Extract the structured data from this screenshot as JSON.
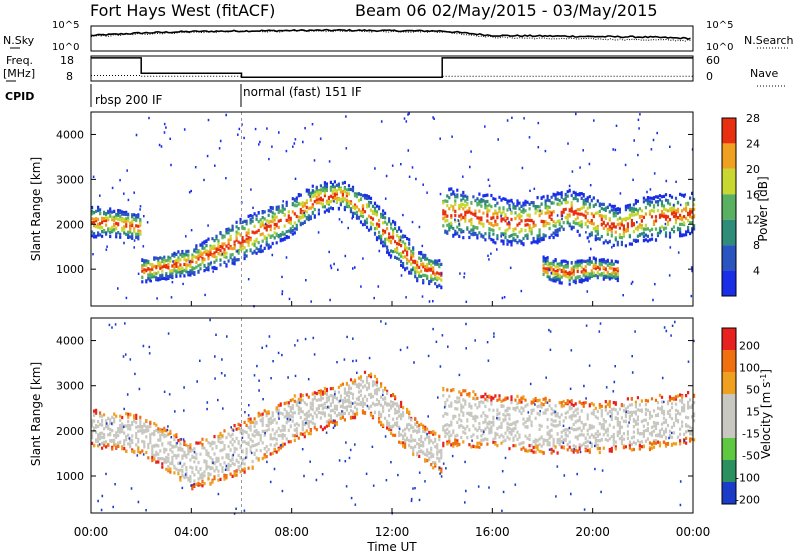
{
  "header": {
    "title": "Fort Hays West (fitACF)",
    "beam_info": "Beam 06 02/May/2015 - 03/May/2015"
  },
  "chart_data": [
    {
      "type": "line",
      "panel": "sky-noise",
      "left_label": "N.Sky",
      "right_label": "N.Search",
      "left_ticks": [
        "10^5",
        "10^0"
      ],
      "right_ticks": [
        "10^5",
        "10^0"
      ],
      "series": [
        {
          "name": "N.Sky",
          "x": [
            0,
            2,
            4,
            6,
            8,
            10,
            12,
            14,
            16,
            18,
            20,
            22,
            24
          ],
          "y": [
            0.62,
            0.72,
            0.78,
            0.8,
            0.82,
            0.83,
            0.81,
            0.8,
            0.62,
            0.6,
            0.58,
            0.56,
            0.5
          ]
        },
        {
          "name": "N.Search",
          "x": [
            0,
            2,
            4,
            6,
            8,
            10,
            12,
            14,
            16,
            18,
            20,
            22,
            24
          ],
          "y": [
            0.58,
            0.68,
            0.75,
            0.78,
            0.79,
            0.8,
            0.78,
            0.77,
            0.55,
            0.5,
            0.48,
            0.45,
            0.42
          ]
        }
      ]
    },
    {
      "type": "line",
      "panel": "frequency-nave",
      "left_label": "Freq.",
      "left_unit": "[MHz]",
      "right_label": "Nave",
      "left_ticks": [
        "18",
        "8"
      ],
      "right_ticks": [
        "60",
        "0"
      ],
      "series": [
        {
          "name": "Freq.",
          "x": [
            0,
            2,
            2,
            6,
            6,
            14,
            14,
            24
          ],
          "y": [
            18,
            18,
            10,
            10,
            8,
            8,
            18,
            18
          ]
        },
        {
          "name": "Nave",
          "x": [
            0,
            2,
            2,
            6,
            6,
            14,
            14,
            24
          ],
          "y": [
            14,
            14,
            12,
            12,
            10,
            10,
            12,
            12
          ]
        }
      ]
    },
    {
      "type": "table",
      "panel": "cpid",
      "label": "CPID",
      "segments": [
        {
          "start": 0,
          "end": 6,
          "text": "rbsp 200 IF"
        },
        {
          "start": 6,
          "end": 24,
          "text": "normal (fast) 151 IF"
        }
      ]
    },
    {
      "type": "heatmap",
      "panel": "power",
      "ylabel": "Slant Range [km]",
      "xlim": [
        0,
        24
      ],
      "ylim": [
        180,
        4500
      ],
      "yticks": [
        1000,
        2000,
        3000,
        4000
      ],
      "colorbar": {
        "label": "Power [dB]",
        "ticks": [
          "4",
          "8",
          "12",
          "16",
          "20",
          "24",
          "28"
        ],
        "colors": [
          "#1a2ee8",
          "#2a55c0",
          "#2e8c78",
          "#58b060",
          "#c8d830",
          "#f0a020",
          "#e83010"
        ]
      },
      "bands": [
        {
          "x": [
            0,
            1,
            2,
            2,
            4,
            6,
            8,
            9,
            10,
            11,
            12,
            13,
            14
          ],
          "center": [
            2100,
            2050,
            1950,
            1000,
            1200,
            1700,
            2200,
            2600,
            2700,
            2300,
            1700,
            1100,
            900
          ],
          "width": [
            350,
            300,
            300,
            260,
            300,
            500,
            420,
            350,
            300,
            380,
            450,
            350,
            300
          ]
        },
        {
          "x": [
            14,
            15,
            16,
            17,
            18,
            19,
            20,
            21,
            22,
            23,
            24
          ],
          "center": [
            2300,
            2250,
            2150,
            2050,
            2150,
            2350,
            2150,
            1950,
            2150,
            2200,
            2300
          ],
          "width": [
            550,
            520,
            520,
            500,
            520,
            450,
            500,
            450,
            500,
            500,
            450
          ]
        },
        {
          "x": [
            18,
            19,
            20,
            21
          ],
          "center": [
            1050,
            950,
            1050,
            1000
          ],
          "width": [
            260,
            260,
            240,
            220
          ]
        }
      ]
    },
    {
      "type": "heatmap",
      "panel": "velocity",
      "ylabel": "Slant Range [km]",
      "xlabel": "Time UT",
      "xlim": [
        0,
        24
      ],
      "ylim": [
        180,
        4500
      ],
      "yticks": [
        1000,
        2000,
        3000,
        4000
      ],
      "xticks": [
        "00:00",
        "04:00",
        "08:00",
        "12:00",
        "16:00",
        "20:00",
        "00:00"
      ],
      "colorbar": {
        "label": "Velocity [m s^-1]",
        "ticks": [
          "200",
          "100",
          "50",
          "15",
          "-15",
          "-50",
          "-100",
          "-200"
        ],
        "colors": [
          "#1a3cc8",
          "#2a9060",
          "#5ec840",
          "#c8c8c0",
          "#c8c8c0",
          "#f0a020",
          "#f07010",
          "#e82020"
        ]
      },
      "bands": [
        {
          "x": [
            0,
            2,
            4,
            6,
            8,
            10,
            11,
            12,
            13,
            14
          ],
          "center": [
            2100,
            1950,
            1250,
            1650,
            2300,
            2650,
            2900,
            2400,
            1800,
            1500
          ],
          "width": [
            420,
            420,
            500,
            600,
            500,
            420,
            480,
            500,
            420,
            400
          ]
        },
        {
          "x": [
            14,
            16,
            18,
            20,
            22,
            24
          ],
          "center": [
            2350,
            2250,
            2150,
            2100,
            2200,
            2350
          ],
          "width": [
            650,
            600,
            620,
            560,
            600,
            560
          ]
        }
      ]
    }
  ]
}
